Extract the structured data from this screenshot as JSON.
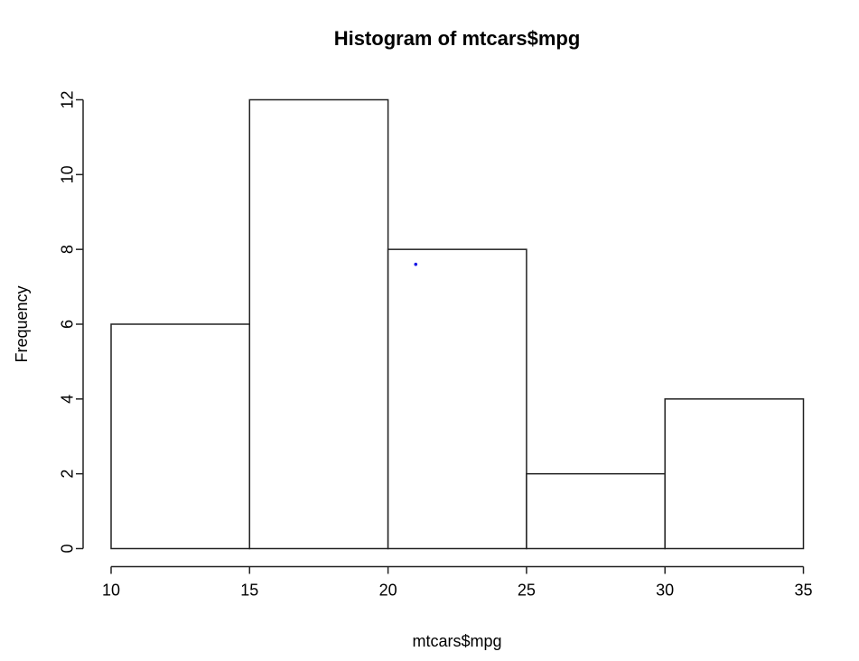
{
  "chart_data": {
    "type": "bar",
    "subtype": "histogram",
    "title": "Histogram of mtcars$mpg",
    "xlabel": "mtcars$mpg",
    "ylabel": "Frequency",
    "breaks": [
      10,
      15,
      20,
      25,
      30,
      35
    ],
    "counts": [
      6,
      12,
      8,
      2,
      4
    ],
    "categories": [
      "10-15",
      "15-20",
      "20-25",
      "25-30",
      "30-35"
    ],
    "x_ticks": [
      10,
      15,
      20,
      25,
      30,
      35
    ],
    "y_ticks": [
      0,
      2,
      4,
      6,
      8,
      10,
      12
    ],
    "xlim": [
      10,
      35
    ],
    "ylim": [
      0,
      12
    ],
    "grid": false,
    "legend": "none",
    "bar_fill": "#ffffff",
    "bar_stroke": "#222222",
    "axis_color": "#222222",
    "text_color": "#000000",
    "background": "#ffffff",
    "stray_point": {
      "x": 21,
      "y": 7.6,
      "color": "#1717e6"
    }
  }
}
